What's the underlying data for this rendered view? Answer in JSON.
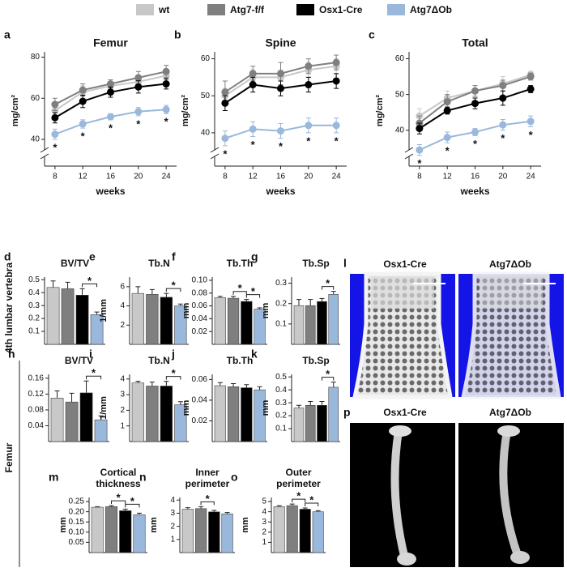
{
  "chart_data": [
    {
      "type": "line",
      "panel": "a",
      "title": "Femur",
      "xlabel": "weeks",
      "ylabel": "mg/cm²",
      "x": [
        8,
        12,
        16,
        20,
        24
      ],
      "xlim": [
        6.5,
        25.5
      ],
      "xticks": [
        8,
        12,
        16,
        20,
        24
      ],
      "ylim": [
        27,
        81
      ],
      "yticks": [
        40,
        60,
        80
      ],
      "series": [
        {
          "name": "wt",
          "color": "#c8c8c8",
          "values": [
            54,
            63,
            66,
            68,
            71
          ],
          "errors": [
            2,
            3,
            2,
            3,
            2
          ]
        },
        {
          "name": "Atg7-f/f",
          "color": "#7f7f7f",
          "values": [
            57,
            64,
            67,
            70,
            73
          ],
          "errors": [
            3,
            3,
            2,
            3,
            3
          ]
        },
        {
          "name": "Osx1-Cre",
          "color": "#000000",
          "values": [
            50.5,
            58.5,
            63,
            65.5,
            67
          ],
          "errors": [
            2.5,
            3,
            2.5,
            3,
            2.5
          ]
        },
        {
          "name": "Atg7ΔOb",
          "color": "#9ab8dc",
          "values": [
            42.5,
            47.5,
            51,
            53.5,
            54.5
          ],
          "errors": [
            2.5,
            2,
            1.5,
            2,
            2
          ]
        }
      ],
      "significance": [
        "*",
        "*",
        "*",
        "*",
        "*"
      ]
    },
    {
      "type": "line",
      "panel": "b",
      "title": "Spine",
      "xlabel": "weeks",
      "ylabel": "mg/cm²",
      "x": [
        8,
        12,
        16,
        20,
        24
      ],
      "xlim": [
        6.5,
        25.5
      ],
      "xticks": [
        8,
        12,
        16,
        20,
        24
      ],
      "ylim": [
        31,
        61
      ],
      "yticks": [
        40,
        50,
        60
      ],
      "series": [
        {
          "values": [
            50,
            55,
            55,
            57,
            58
          ],
          "errors": [
            2,
            2,
            2,
            2,
            2
          ]
        },
        {
          "values": [
            51,
            56,
            56,
            58,
            59
          ],
          "errors": [
            3,
            2,
            3,
            2,
            2
          ]
        },
        {
          "values": [
            48,
            53,
            52,
            53,
            54
          ],
          "errors": [
            2,
            2,
            2,
            2,
            2
          ]
        },
        {
          "values": [
            38.5,
            41,
            40.5,
            42,
            42
          ],
          "errors": [
            2,
            2,
            2,
            2,
            2
          ]
        }
      ],
      "significance": [
        "*",
        "*",
        "*",
        "*",
        "*"
      ]
    },
    {
      "type": "line",
      "panel": "c",
      "title": "Total",
      "xlabel": "weeks",
      "ylabel": "mg/cm²",
      "x": [
        8,
        12,
        16,
        20,
        24
      ],
      "xlim": [
        6.5,
        25.5
      ],
      "xticks": [
        8,
        12,
        16,
        20,
        24
      ],
      "ylim": [
        30,
        61
      ],
      "yticks": [
        40,
        50,
        60
      ],
      "series": [
        {
          "values": [
            44,
            49,
            51,
            53,
            55.5
          ],
          "errors": [
            2,
            2,
            1.5,
            2,
            1
          ]
        },
        {
          "values": [
            42,
            48,
            51,
            52.5,
            55
          ],
          "errors": [
            2,
            2,
            1.5,
            1.5,
            1
          ]
        },
        {
          "values": [
            40.5,
            45.5,
            47.5,
            49,
            51.5
          ],
          "errors": [
            1.5,
            1,
            1.5,
            2,
            1
          ]
        },
        {
          "values": [
            34.5,
            38,
            39.5,
            41.5,
            42.5
          ],
          "errors": [
            1.5,
            1.5,
            1,
            1.5,
            1.5
          ]
        }
      ],
      "significance": [
        "*",
        "*",
        "*",
        "*",
        "*"
      ]
    },
    {
      "type": "bar",
      "panel": "d",
      "title": "BV/TV",
      "ylim": [
        0,
        0.52
      ],
      "yticks": [
        0.1,
        0.2,
        0.3,
        0.4,
        0.5
      ],
      "values": [
        0.44,
        0.43,
        0.38,
        0.23
      ],
      "errors": [
        0.05,
        0.05,
        0.05,
        0.02
      ],
      "significance": [
        {
          "from": 2,
          "to": 3,
          "label": "*"
        }
      ]
    },
    {
      "type": "bar",
      "panel": "e",
      "title": "Tb.N",
      "ylabel": "1/mm",
      "ylim": [
        0,
        7
      ],
      "yticks": [
        2,
        4,
        6
      ],
      "values": [
        5.3,
        5.2,
        4.9,
        4.0
      ],
      "errors": [
        0.7,
        0.5,
        0.4,
        0.2
      ],
      "significance": [
        {
          "from": 2,
          "to": 3,
          "label": "*"
        }
      ]
    },
    {
      "type": "bar",
      "panel": "f",
      "title": "Tb.Th",
      "ylabel": "mm",
      "ylim": [
        0,
        0.105
      ],
      "yticks": [
        0.02,
        0.04,
        0.06,
        0.08,
        {
          "value": 0.1,
          "label": "0.10"
        }
      ],
      "values": [
        0.073,
        0.072,
        0.067,
        0.055
      ],
      "errors": [
        0.002,
        0.003,
        0.003,
        0.002
      ],
      "significance": [
        {
          "from": 1,
          "to": 2,
          "label": "*"
        },
        {
          "from": 2,
          "to": 3,
          "label": "*"
        }
      ]
    },
    {
      "type": "bar",
      "panel": "g",
      "title": "Tb.Sp",
      "ylabel": "mm",
      "ylim": [
        0,
        0.33
      ],
      "yticks": [
        0.1,
        0.2,
        0.3
      ],
      "values": [
        0.19,
        0.19,
        0.21,
        0.245
      ],
      "errors": [
        0.03,
        0.03,
        0.015,
        0.015
      ],
      "significance": [
        {
          "from": 2,
          "to": 3,
          "label": "*"
        }
      ]
    },
    {
      "type": "bar",
      "panel": "h",
      "title": "BV/TV",
      "ylim": [
        0,
        0.17
      ],
      "yticks": [
        0.04,
        0.08,
        0.12,
        0.16
      ],
      "values": [
        0.11,
        0.1,
        0.123,
        0.055
      ],
      "errors": [
        0.018,
        0.022,
        0.03,
        0.01
      ],
      "significance": [
        {
          "from": 2,
          "to": 3,
          "label": "*"
        }
      ]
    },
    {
      "type": "bar",
      "panel": "i",
      "title": "Tb.N",
      "ylabel": "1/mm",
      "ylim": [
        0,
        4.3
      ],
      "yticks": [
        1,
        2,
        3,
        4
      ],
      "values": [
        3.75,
        3.55,
        3.55,
        2.35
      ],
      "errors": [
        0.1,
        0.25,
        0.3,
        0.2
      ],
      "significance": [
        {
          "from": 2,
          "to": 3,
          "label": "*"
        }
      ]
    },
    {
      "type": "bar",
      "panel": "j",
      "title": "Tb.Th",
      "ylabel": "mm",
      "ylim": [
        0,
        0.065
      ],
      "yticks": [
        0.02,
        0.04,
        0.06
      ],
      "values": [
        0.054,
        0.053,
        0.052,
        0.05
      ],
      "errors": [
        0.003,
        0.003,
        0.003,
        0.003
      ],
      "significance": []
    },
    {
      "type": "bar",
      "panel": "k",
      "title": "Tb.Sp",
      "ylabel": "mm",
      "ylim": [
        0,
        0.52
      ],
      "yticks": [
        0.1,
        0.2,
        0.3,
        0.4,
        0.5
      ],
      "values": [
        0.26,
        0.28,
        0.28,
        0.42
      ],
      "errors": [
        0.02,
        0.03,
        0.03,
        0.04
      ],
      "significance": [
        {
          "from": 2,
          "to": 3,
          "label": "*"
        }
      ]
    },
    {
      "type": "bar",
      "panel": "m",
      "title": [
        "Cortical",
        "thickness"
      ],
      "ylabel": "mm",
      "ylim": [
        0,
        0.27
      ],
      "yticks": [
        0.05,
        {
          "value": 0.1,
          "label": "0.10"
        },
        0.15,
        {
          "value": 0.2,
          "label": "0.20"
        },
        0.25
      ],
      "values": [
        0.222,
        0.225,
        0.205,
        0.185
      ],
      "errors": [
        0.003,
        0.005,
        0.008,
        0.008
      ],
      "significance": [
        {
          "from": 1,
          "to": 2,
          "label": "*"
        },
        {
          "from": 2,
          "to": 3,
          "label": "*"
        }
      ]
    },
    {
      "type": "bar",
      "panel": "n",
      "title": [
        "Inner",
        "perimeter"
      ],
      "ylabel": "mm",
      "ylim": [
        0,
        4.2
      ],
      "yticks": [
        1,
        2,
        3,
        4
      ],
      "values": [
        3.3,
        3.35,
        3.1,
        2.95
      ],
      "errors": [
        0.12,
        0.15,
        0.12,
        0.1
      ],
      "significance": [
        {
          "from": 1,
          "to": 2,
          "label": "*"
        }
      ]
    },
    {
      "type": "bar",
      "panel": "o",
      "title": [
        "Outer",
        "perimeter"
      ],
      "ylabel": "mm",
      "ylim": [
        0,
        5.4
      ],
      "yticks": [
        1,
        2,
        3,
        4,
        5
      ],
      "values": [
        4.5,
        4.6,
        4.25,
        4.0
      ],
      "errors": [
        0.1,
        0.15,
        0.12,
        0.1
      ],
      "significance": [
        {
          "from": 1,
          "to": 2,
          "label": "*"
        },
        {
          "from": 2,
          "to": 3,
          "label": "*"
        }
      ]
    }
  ],
  "row_labels": [
    "4th lumbar vertebra",
    "Femur"
  ],
  "images": [
    {
      "panel": "l",
      "labels": [
        "Osx1-Cre",
        "Atg7ΔOb"
      ]
    },
    {
      "panel": "p",
      "labels": [
        "Osx1-Cre",
        "Atg7ΔOb"
      ]
    }
  ]
}
